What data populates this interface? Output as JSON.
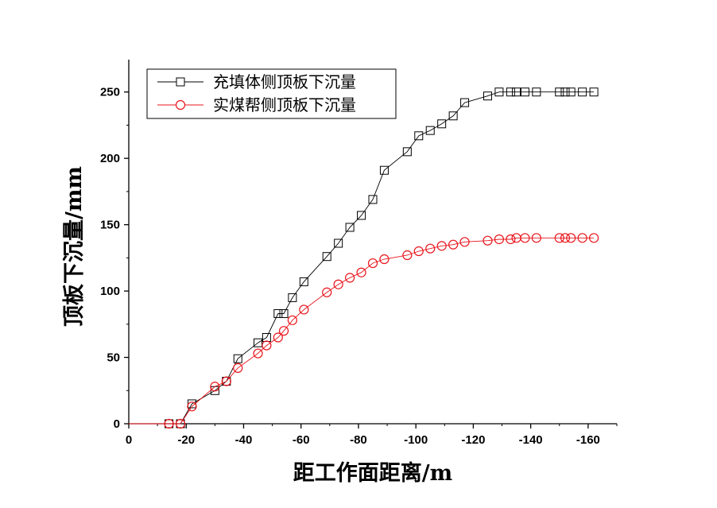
{
  "chart_data": {
    "type": "line",
    "xlabel": "距工作面距离/m",
    "ylabel": "顶板下沉量/mm",
    "xlim": [
      0,
      -170
    ],
    "ylim": [
      0,
      275
    ],
    "x_ticks": [
      0,
      -20,
      -40,
      -60,
      -80,
      -100,
      -120,
      -140,
      -160
    ],
    "x_tick_labels": [
      "0",
      "-20",
      "-40",
      "-60",
      "-80",
      "-100",
      "-120",
      "-140",
      "-160"
    ],
    "y_ticks": [
      0,
      50,
      100,
      150,
      200,
      250
    ],
    "y_tick_labels": [
      "0",
      "50",
      "100",
      "150",
      "200",
      "250"
    ],
    "grid": false,
    "legend_position": "top-left",
    "series": [
      {
        "name": "充填体侧顶板下沉量",
        "color": "#000000",
        "marker": "square",
        "x": [
          0,
          -8,
          -14,
          -18,
          -22,
          -30,
          -34,
          -38,
          -45,
          -48,
          -52,
          -54,
          -57,
          -61,
          -69,
          -73,
          -77,
          -81,
          -85,
          -89,
          -97,
          -101,
          -105,
          -109,
          -113,
          -117,
          -125,
          -129,
          -133,
          -135,
          -138,
          -142,
          -150,
          -152,
          -154,
          -158,
          -162
        ],
        "y": [
          0,
          0,
          0,
          0,
          15,
          25,
          32,
          49,
          61,
          65,
          83,
          83,
          95,
          107,
          126,
          136,
          148,
          157,
          169,
          191,
          205,
          217,
          221,
          226,
          232,
          242,
          247,
          250,
          250,
          250,
          250,
          250,
          250,
          250,
          250,
          250,
          250
        ]
      },
      {
        "name": "实煤帮侧顶板下沉量",
        "color": "#e8141b",
        "marker": "circle",
        "x": [
          0,
          -8,
          -14,
          -18,
          -22,
          -30,
          -34,
          -38,
          -45,
          -48,
          -52,
          -54,
          -57,
          -61,
          -69,
          -73,
          -77,
          -81,
          -85,
          -89,
          -97,
          -101,
          -105,
          -109,
          -113,
          -117,
          -125,
          -129,
          -133,
          -135,
          -138,
          -142,
          -150,
          -152,
          -154,
          -158,
          -162
        ],
        "y": [
          0,
          0,
          0,
          0,
          13,
          28,
          32,
          42,
          53,
          59,
          65,
          70,
          78,
          86,
          99,
          105,
          110,
          114,
          121,
          124,
          127,
          130,
          132,
          134,
          135,
          137,
          138,
          139,
          139,
          140,
          140,
          140,
          140,
          140,
          140,
          140,
          140
        ]
      }
    ]
  }
}
